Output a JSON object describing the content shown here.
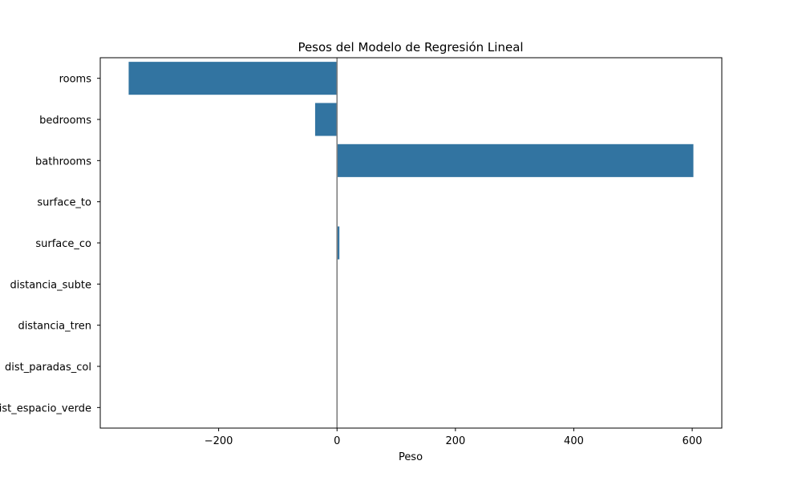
{
  "chart_data": {
    "type": "bar",
    "orientation": "horizontal",
    "title": "Pesos del Modelo de Regresión Lineal",
    "xlabel": "Peso",
    "ylabel": "",
    "categories": [
      "rooms",
      "bedrooms",
      "bathrooms",
      "surface_to",
      "surface_co",
      "distancia_subte",
      "distancia_tren",
      "dist_paradas_col",
      "dist_espacio_verde"
    ],
    "values": [
      -352,
      -37,
      602,
      0.3,
      4,
      0.05,
      0.03,
      0.02,
      0.01
    ],
    "xlim": [
      -400,
      650
    ],
    "xticks": [
      -200,
      0,
      200,
      400,
      600
    ],
    "xtick_labels": [
      "−200",
      "0",
      "200",
      "400",
      "600"
    ],
    "reference_line": {
      "x": 0,
      "color": "#808080"
    },
    "bar_color": "#3274a1",
    "grid": false,
    "legend": "none"
  }
}
